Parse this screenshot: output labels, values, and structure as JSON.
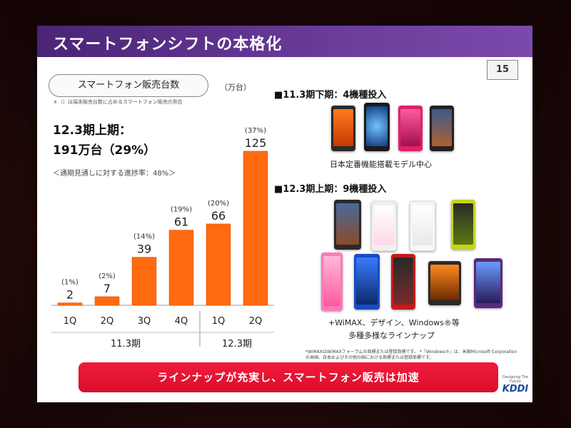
{
  "slide": {
    "title": "スマートフォンシフトの本格化",
    "page_number": "15"
  },
  "left": {
    "chart_label": "スマートフォン販売台数",
    "unit": "（万台）",
    "note": "＊（）は端末販売台数に占めるスマートフォン販売の割合",
    "summary_line1": "12.3期上期：",
    "summary_line2": "191万台（29%）",
    "progress": "＜通期見通しに対する進捗率：48%＞"
  },
  "chart_data": {
    "type": "bar",
    "categories": [
      "1Q",
      "2Q",
      "3Q",
      "4Q",
      "1Q",
      "2Q"
    ],
    "values": [
      2,
      7,
      39,
      61,
      66,
      125
    ],
    "ratio_labels": [
      "(1%)",
      "(2%)",
      "(14%)",
      "(19%)",
      "(20%)",
      "(37%)"
    ],
    "groups": [
      {
        "label": "11.3期",
        "span": [
          0,
          3
        ]
      },
      {
        "label": "12.3期",
        "span": [
          4,
          5
        ]
      }
    ],
    "ylim": [
      0,
      140
    ],
    "bar_color": "#ff6a10",
    "title": "",
    "xlabel": "",
    "ylabel": ""
  },
  "right": {
    "section1_title": "■11.3期下期：4機種投入",
    "section1_sub": "日本定番機能搭載モデル中心",
    "section2_title": "■12.3期上期：9機種投入",
    "section2_sub1": "+WiMAX、デザイン、Windows®等",
    "section2_sub2": "多種多様なラインナップ"
  },
  "legal": "*WiMAXはWiMAXフォーラムの商標または登録商標です。 *「Windows®」は、米国Microsoft Corporationの米国、日本およびその他の国における商標または登録商標です。",
  "banner": "ラインナップが充実し、スマートフォン販売は加速",
  "logo": {
    "tagline": "Designing The Future",
    "name": "KDDI"
  },
  "colors": {
    "title_bar": "#5a2e88",
    "banner": "#e8132f",
    "bar": "#ff6a10"
  }
}
